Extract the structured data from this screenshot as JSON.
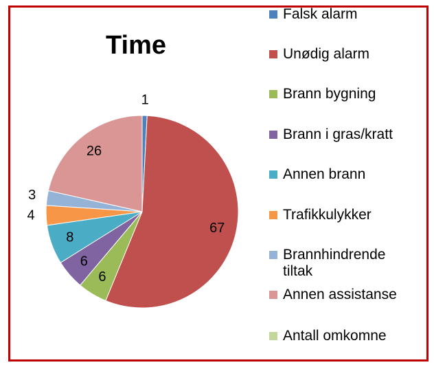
{
  "chart_data": {
    "type": "pie",
    "title": "Time",
    "categories": [
      "Falsk alarm",
      "Unødig alarm",
      "Brann bygning",
      "Brann i gras/kratt",
      "Annen brann",
      "Trafikkulykker",
      "Brannhindrende tiltak",
      "Annen assistanse",
      "Antall omkomne"
    ],
    "values": [
      1,
      67,
      6,
      6,
      8,
      4,
      3,
      26,
      0
    ],
    "colors": [
      "#4f81bd",
      "#c0504d",
      "#9bbb59",
      "#8064a2",
      "#4bacc6",
      "#f79646",
      "#95b3d7",
      "#d99694",
      "#c3d69b"
    ]
  }
}
